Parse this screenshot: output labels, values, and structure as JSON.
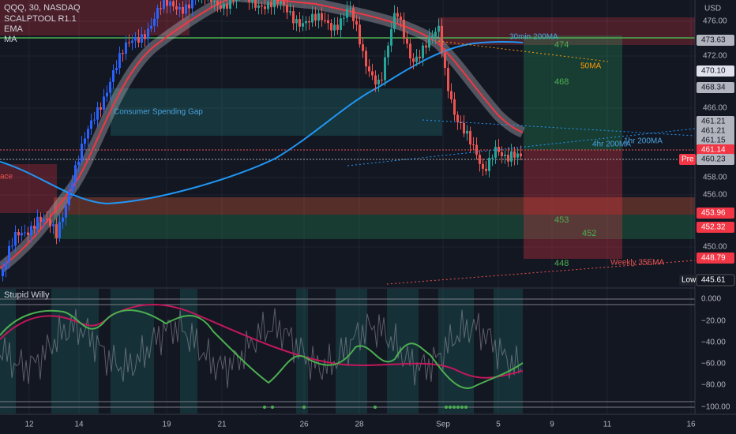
{
  "header": {
    "symbol": "QQQ, 30, NASDAQ",
    "indicators": [
      "SCALPTOOL R1.1",
      "EMA",
      "MA"
    ],
    "currency": "USD"
  },
  "annotations": [
    "Consumer Spending Gap",
    "30min 200MA",
    "50MA",
    "4hr 200MA",
    "1hr 200MA",
    "Weekly 35EMA",
    "ace"
  ],
  "targets": [
    "474",
    "468",
    "453",
    "452",
    "448"
  ],
  "price_axis": [
    "476.00",
    "472.00",
    "466.00",
    "458.00",
    "456.00",
    "450.00"
  ],
  "price_tags": [
    {
      "label": "473.63"
    },
    {
      "label": "470.10"
    },
    {
      "label": "468.34"
    },
    {
      "label": "461.21"
    },
    {
      "label": "461.21"
    },
    {
      "label": "461.15"
    },
    {
      "label": "461.14"
    },
    {
      "label": "460.23",
      "note": "Pre"
    },
    {
      "label": "453.96"
    },
    {
      "label": "452.32"
    },
    {
      "label": "448.79"
    },
    {
      "label": "445.61",
      "note": "Low"
    }
  ],
  "lower_pane": {
    "title": "Stupid Willy",
    "axis": [
      "0.000",
      "−20.00",
      "−40.00",
      "−60.00",
      "−80.00",
      "−100.00"
    ]
  },
  "time_axis": [
    "12",
    "14",
    "19",
    "21",
    "26",
    "28",
    "Sep",
    "5",
    "9",
    "11",
    "16"
  ]
}
